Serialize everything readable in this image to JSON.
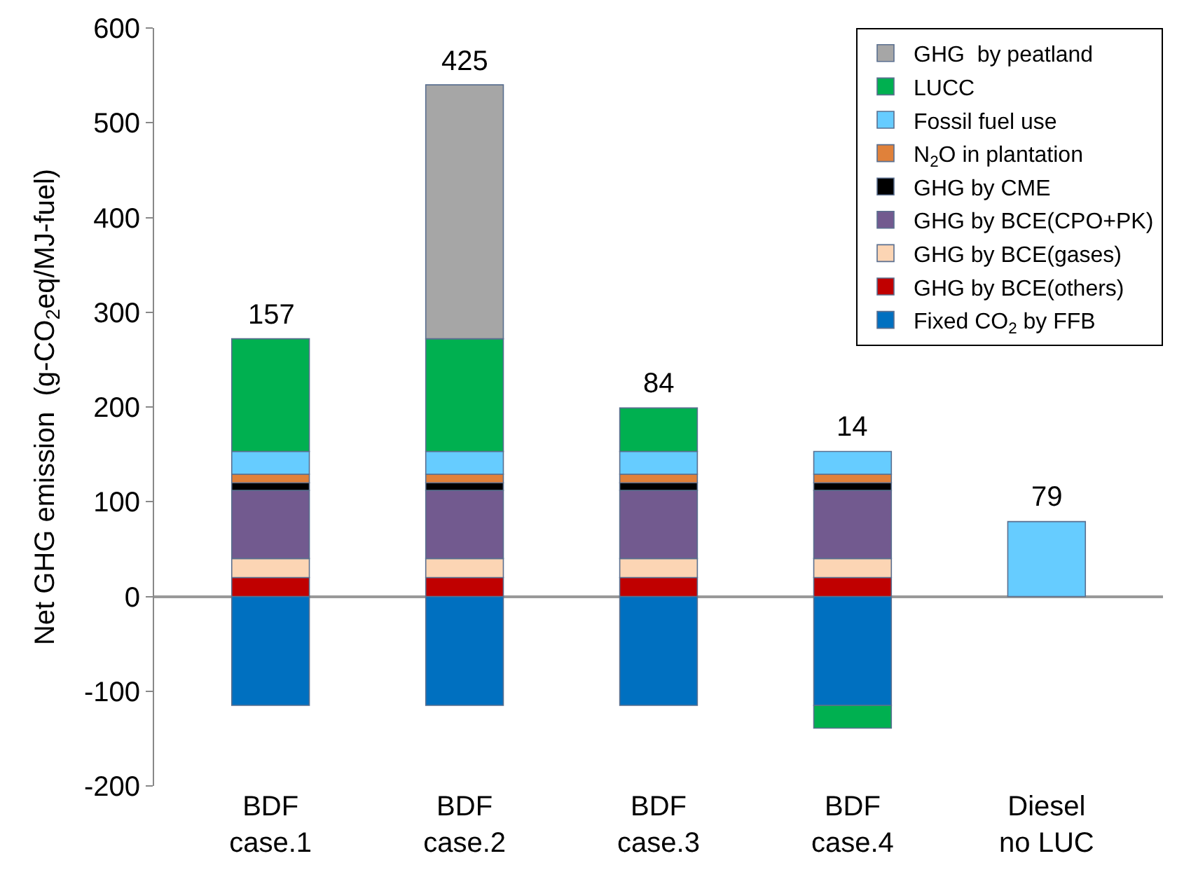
{
  "chart_data": {
    "type": "bar",
    "stacked": true,
    "ylabel": "Net GHG emission  (g-CO$_{2}$eq/MJ-fuel)",
    "categories": [
      "BDF\ncase.1",
      "BDF\ncase.2",
      "BDF\ncase.3",
      "BDF\ncase.4",
      "Diesel\nno LUC"
    ],
    "series": [
      {
        "name": "Fixed CO$_{2}$ by FFB",
        "color": "#0070c0",
        "values": [
          -115,
          -115,
          -115,
          -115,
          null
        ]
      },
      {
        "name": "GHG by BCE(others)",
        "color": "#c00000",
        "values": [
          20,
          20,
          20,
          20,
          null
        ]
      },
      {
        "name": "GHG by BCE(gases)",
        "color": "#fcd5b4",
        "values": [
          20,
          20,
          20,
          20,
          null
        ]
      },
      {
        "name": "GHG by BCE(CPO+PK)",
        "color": "#725a8f",
        "values": [
          72,
          72,
          72,
          72,
          null
        ]
      },
      {
        "name": "GHG by CME",
        "color": "#000000",
        "values": [
          8,
          8,
          8,
          8,
          null
        ]
      },
      {
        "name": "N$_{2}$O in plantation",
        "color": "#e0813a",
        "values": [
          9,
          9,
          9,
          9,
          null
        ]
      },
      {
        "name": "Fossil fuel use",
        "color": "#66ccff",
        "values": [
          24,
          24,
          24,
          24,
          79
        ]
      },
      {
        "name": "LUCC",
        "color": "#00b050",
        "values": [
          119,
          119,
          46,
          -24,
          null
        ]
      },
      {
        "name": "GHG  by peatland",
        "color": "#a6a6a6",
        "values": [
          null,
          268,
          null,
          null,
          null
        ]
      }
    ],
    "totals": [
      "157",
      "425",
      "84",
      "14",
      "79"
    ],
    "ylim": [
      -200,
      600
    ],
    "yticks": [
      -200,
      -100,
      0,
      100,
      200,
      300,
      400,
      500,
      600
    ],
    "legend": "top right"
  }
}
